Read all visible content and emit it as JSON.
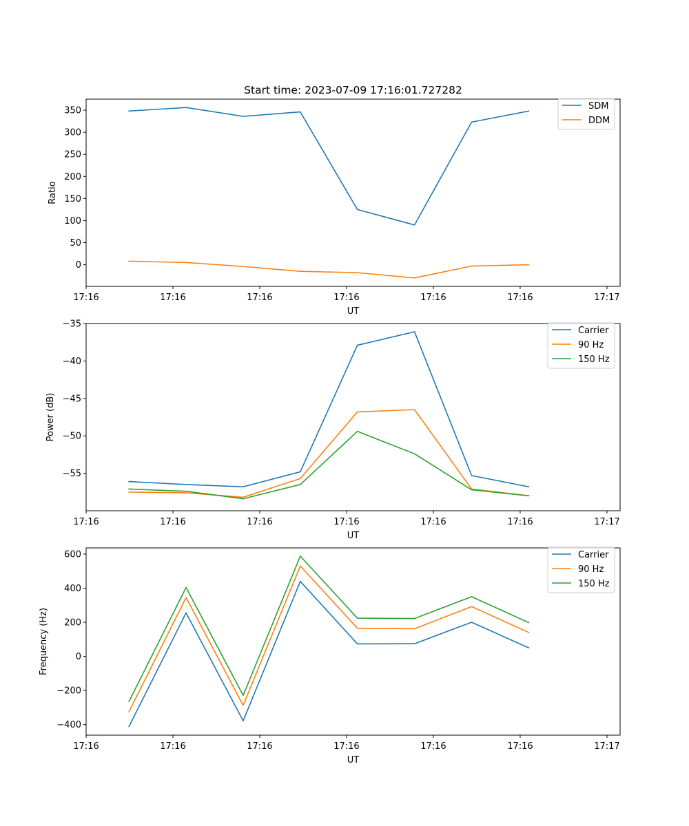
{
  "chart_data": [
    {
      "type": "line",
      "title": "Start time: 2023-07-09 17:16:01.727282",
      "xlabel": "UT",
      "ylabel": "Ratio",
      "x_index": [
        0,
        1,
        2,
        3,
        4,
        5,
        6,
        7
      ],
      "xlim": [
        -0.75,
        8.6
      ],
      "x_ticks": [
        -0.75,
        0.77,
        2.29,
        3.81,
        5.33,
        6.85,
        8.37
      ],
      "x_tick_labels": [
        "17:16",
        "17:16",
        "17:16",
        "17:16",
        "17:16",
        "17:16",
        "17:17"
      ],
      "ylim": [
        -49,
        375
      ],
      "y_ticks": [
        0,
        50,
        100,
        150,
        200,
        250,
        300,
        350
      ],
      "y_tick_labels": [
        "0",
        "50",
        "100",
        "150",
        "200",
        "250",
        "300",
        "350"
      ],
      "legend_position": "top-right",
      "series": [
        {
          "name": "SDM",
          "color": "#1f77b4",
          "values": [
            348,
            356,
            336,
            346,
            125,
            90,
            323,
            348
          ]
        },
        {
          "name": "DDM",
          "color": "#ff7f0e",
          "values": [
            8,
            5,
            -4,
            -15,
            -18,
            -30,
            -3,
            0
          ]
        }
      ]
    },
    {
      "type": "line",
      "title": "",
      "xlabel": "UT",
      "ylabel": "Power (dB)",
      "x_index": [
        0,
        1,
        2,
        3,
        4,
        5,
        6,
        7
      ],
      "xlim": [
        -0.75,
        8.6
      ],
      "x_ticks": [
        -0.75,
        0.77,
        2.29,
        3.81,
        5.33,
        6.85,
        8.37
      ],
      "x_tick_labels": [
        "17:16",
        "17:16",
        "17:16",
        "17:16",
        "17:16",
        "17:16",
        "17:17"
      ],
      "ylim": [
        -60.0,
        -35.0
      ],
      "y_ticks": [
        -55,
        -50,
        -45,
        -40,
        -35
      ],
      "y_tick_labels": [
        "−55",
        "−50",
        "−45",
        "−40",
        "−35"
      ],
      "legend_position": "top-right",
      "series": [
        {
          "name": "Carrier",
          "color": "#1f77b4",
          "values": [
            -56.1,
            -56.5,
            -56.8,
            -54.8,
            -37.9,
            -36.1,
            -55.3,
            -56.8
          ]
        },
        {
          "name": "90 Hz",
          "color": "#ff7f0e",
          "values": [
            -57.5,
            -57.6,
            -58.2,
            -55.7,
            -46.8,
            -46.5,
            -57.1,
            -58.0
          ]
        },
        {
          "name": "150 Hz",
          "color": "#2ca02c",
          "values": [
            -57.1,
            -57.4,
            -58.4,
            -56.5,
            -49.4,
            -52.4,
            -57.2,
            -58.0
          ]
        }
      ]
    },
    {
      "type": "line",
      "title": "",
      "xlabel": "UT",
      "ylabel": "Frequency (Hz)",
      "x_index": [
        0,
        1,
        2,
        3,
        4,
        5,
        6,
        7
      ],
      "xlim": [
        -0.75,
        8.6
      ],
      "x_ticks": [
        -0.75,
        0.77,
        2.29,
        3.81,
        5.33,
        6.85,
        8.37
      ],
      "x_tick_labels": [
        "17:16",
        "17:16",
        "17:16",
        "17:16",
        "17:16",
        "17:16",
        "17:17"
      ],
      "ylim": [
        -462,
        636
      ],
      "y_ticks": [
        -400,
        -200,
        0,
        200,
        400,
        600
      ],
      "y_tick_labels": [
        "−400",
        "−200",
        "0",
        "200",
        "400",
        "600"
      ],
      "legend_position": "top-right",
      "series": [
        {
          "name": "Carrier",
          "color": "#1f77b4",
          "values": [
            -412,
            255,
            -378,
            440,
            73,
            74,
            200,
            50
          ]
        },
        {
          "name": "90 Hz",
          "color": "#ff7f0e",
          "values": [
            -325,
            345,
            -287,
            530,
            165,
            162,
            292,
            140
          ]
        },
        {
          "name": "150 Hz",
          "color": "#2ca02c",
          "values": [
            -265,
            404,
            -229,
            588,
            224,
            222,
            350,
            198
          ]
        }
      ]
    }
  ]
}
